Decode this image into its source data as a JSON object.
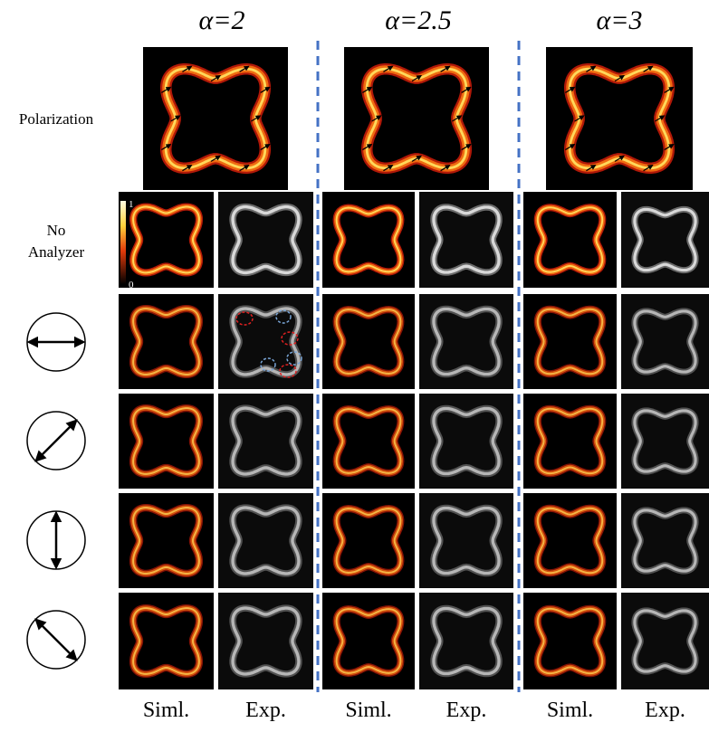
{
  "columns": [
    {
      "label": "α=2"
    },
    {
      "label": "α=2.5"
    },
    {
      "label": "α=3"
    }
  ],
  "row_labels": {
    "polarization": "Polarization",
    "no_analyzer": [
      "No",
      "Analyzer"
    ]
  },
  "colorbar": {
    "max": "1",
    "min": "0"
  },
  "footer": [
    "Siml.",
    "Exp.",
    "Siml.",
    "Exp.",
    "Siml.",
    "Exp."
  ]
}
